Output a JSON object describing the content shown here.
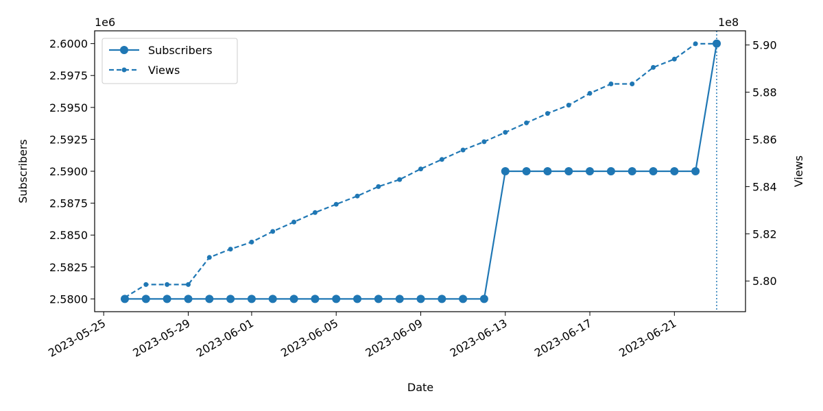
{
  "chart_data": {
    "type": "line",
    "title": "",
    "xlabel": "Date",
    "ylabel": "Subscribers",
    "y2label": "Views",
    "ylim": [
      2579000,
      2601000
    ],
    "y2lim": [
      578700000,
      590600000
    ],
    "y_multiplier": "1e6",
    "y2_multiplier": "1e8",
    "y_ticks": [
      "2.5800",
      "2.5825",
      "2.5850",
      "2.5875",
      "2.5900",
      "2.5925",
      "2.5950",
      "2.5975",
      "2.6000"
    ],
    "y2_ticks": [
      "5.80",
      "5.82",
      "5.84",
      "5.86",
      "5.88",
      "5.90"
    ],
    "x_ticks": [
      "2023-05-25",
      "2023-05-29",
      "2023-06-01",
      "2023-06-05",
      "2023-06-09",
      "2023-06-13",
      "2023-06-17",
      "2023-06-21"
    ],
    "x": [
      "2023-05-26",
      "2023-05-27",
      "2023-05-28",
      "2023-05-29",
      "2023-05-30",
      "2023-05-31",
      "2023-06-01",
      "2023-06-02",
      "2023-06-03",
      "2023-06-04",
      "2023-06-05",
      "2023-06-06",
      "2023-06-07",
      "2023-06-08",
      "2023-06-09",
      "2023-06-10",
      "2023-06-11",
      "2023-06-12",
      "2023-06-13",
      "2023-06-14",
      "2023-06-15",
      "2023-06-16",
      "2023-06-17",
      "2023-06-18",
      "2023-06-19",
      "2023-06-20",
      "2023-06-21",
      "2023-06-22",
      "2023-06-23"
    ],
    "legend_position": "upper-left",
    "grid": false,
    "series": [
      {
        "name": "Subscribers",
        "axis": "left",
        "style": "solid",
        "color": "#1f77b4",
        "values": [
          2580000,
          2580000,
          2580000,
          2580000,
          2580000,
          2580000,
          2580000,
          2580000,
          2580000,
          2580000,
          2580000,
          2580000,
          2580000,
          2580000,
          2580000,
          2580000,
          2580000,
          2580000,
          2590000,
          2590000,
          2590000,
          2590000,
          2590000,
          2590000,
          2590000,
          2590000,
          2590000,
          2590000,
          2600000
        ]
      },
      {
        "name": "Views",
        "axis": "right",
        "style": "dashed",
        "color": "#1f77b4",
        "values": [
          579300000,
          579850000,
          579850000,
          579850000,
          581000000,
          581350000,
          581650000,
          582100000,
          582500000,
          582900000,
          583250000,
          583600000,
          584000000,
          584300000,
          584750000,
          585150000,
          585550000,
          585900000,
          586300000,
          586700000,
          587100000,
          587450000,
          587950000,
          588350000,
          588350000,
          589050000,
          589400000,
          590050000,
          590050000
        ]
      }
    ],
    "annotations": [
      {
        "type": "vertical-line",
        "x": "2023-06-23",
        "style": "dotted",
        "color": "#1f77b4"
      }
    ]
  }
}
